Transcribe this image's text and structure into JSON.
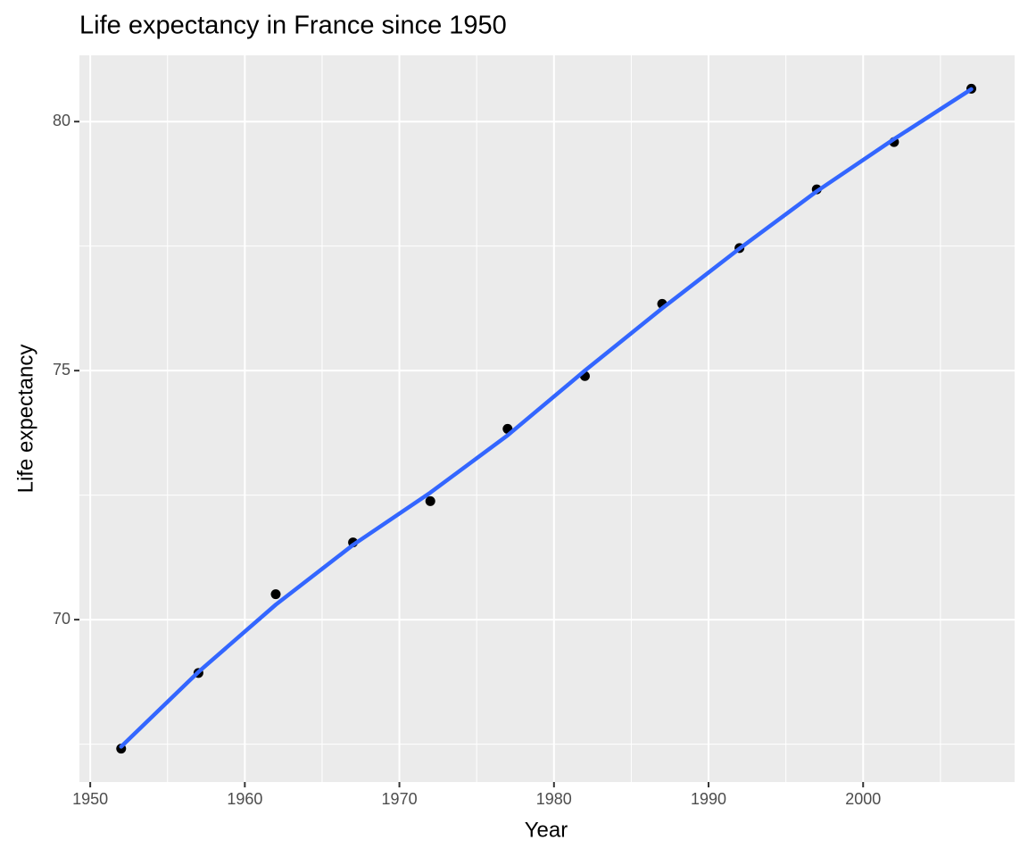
{
  "chart_data": {
    "type": "scatter",
    "title": "Life expectancy in France since 1950",
    "x_label": "Year",
    "y_label": "Life expectancy",
    "x": [
      1952,
      1957,
      1962,
      1967,
      1972,
      1977,
      1982,
      1987,
      1992,
      1997,
      2002,
      2007
    ],
    "series": [
      {
        "type": "scatter",
        "color": "#000000",
        "values": [
          67.41,
          68.93,
          70.51,
          71.55,
          72.38,
          73.83,
          74.89,
          76.34,
          77.46,
          78.64,
          79.59,
          80.66
        ]
      },
      {
        "type": "line",
        "color": "#3366ff",
        "values": [
          67.45,
          68.95,
          70.3,
          71.5,
          72.55,
          73.7,
          75.0,
          76.25,
          77.45,
          78.6,
          79.65,
          80.65
        ]
      }
    ],
    "xlim": [
      1949.3,
      2009.8
    ],
    "xticks": [
      1950,
      1960,
      1970,
      1980,
      1990,
      2000
    ],
    "ylim": [
      66.74,
      81.33
    ],
    "yticks": [
      70,
      75,
      80
    ],
    "grid": true
  }
}
